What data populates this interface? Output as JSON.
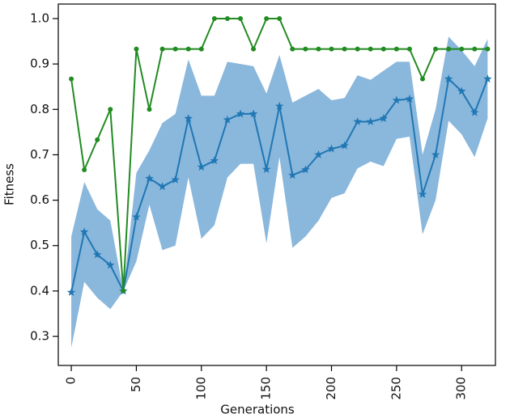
{
  "chart_data": {
    "type": "line",
    "x_label": "Generations",
    "y_label": "Fitness",
    "x": [
      0,
      10,
      20,
      30,
      40,
      50,
      60,
      70,
      80,
      90,
      100,
      110,
      120,
      130,
      140,
      150,
      160,
      170,
      180,
      190,
      200,
      210,
      220,
      230,
      240,
      250,
      260,
      270,
      280,
      290,
      300,
      310,
      320
    ],
    "series": [
      {
        "color": "#1f77b4",
        "marker": "star",
        "values": [
          0.397,
          0.53,
          0.48,
          0.457,
          0.4,
          0.563,
          0.648,
          0.63,
          0.645,
          0.78,
          0.673,
          0.687,
          0.777,
          0.79,
          0.79,
          0.668,
          0.807,
          0.655,
          0.667,
          0.7,
          0.713,
          0.72,
          0.773,
          0.773,
          0.78,
          0.82,
          0.823,
          0.613,
          0.7,
          0.867,
          0.84,
          0.793,
          0.867
        ],
        "upper": [
          0.52,
          0.64,
          0.58,
          0.555,
          0.4,
          0.66,
          0.71,
          0.77,
          0.79,
          0.91,
          0.83,
          0.83,
          0.905,
          0.9,
          0.895,
          0.835,
          0.92,
          0.815,
          0.83,
          0.845,
          0.82,
          0.825,
          0.875,
          0.865,
          0.885,
          0.905,
          0.905,
          0.7,
          0.8,
          0.96,
          0.93,
          0.895,
          0.955
        ],
        "lower": [
          0.275,
          0.42,
          0.385,
          0.36,
          0.4,
          0.465,
          0.59,
          0.49,
          0.5,
          0.65,
          0.515,
          0.545,
          0.65,
          0.68,
          0.68,
          0.505,
          0.695,
          0.495,
          0.52,
          0.555,
          0.605,
          0.615,
          0.67,
          0.685,
          0.675,
          0.735,
          0.74,
          0.525,
          0.6,
          0.775,
          0.745,
          0.695,
          0.78
        ],
        "band_color": "#8ab7dc"
      },
      {
        "color": "#228b22",
        "marker": "circle",
        "values": [
          0.867,
          0.667,
          0.733,
          0.8,
          0.4,
          0.933,
          0.8,
          0.933,
          0.933,
          0.933,
          0.933,
          1.0,
          1.0,
          1.0,
          0.933,
          1.0,
          1.0,
          0.933,
          0.933,
          0.933,
          0.933,
          0.933,
          0.933,
          0.933,
          0.933,
          0.933,
          0.933,
          0.867,
          0.933,
          0.933,
          0.933,
          0.933,
          0.933
        ]
      }
    ],
    "xlim": [
      -10,
      326
    ],
    "ylim": [
      0.236,
      1.032
    ],
    "xticks": [
      0,
      50,
      100,
      150,
      200,
      250,
      300
    ],
    "yticks": [
      0.3,
      0.4,
      0.5,
      0.6,
      0.7,
      0.8,
      0.9,
      {
        "value": 1,
        "label": "1.0"
      }
    ]
  }
}
